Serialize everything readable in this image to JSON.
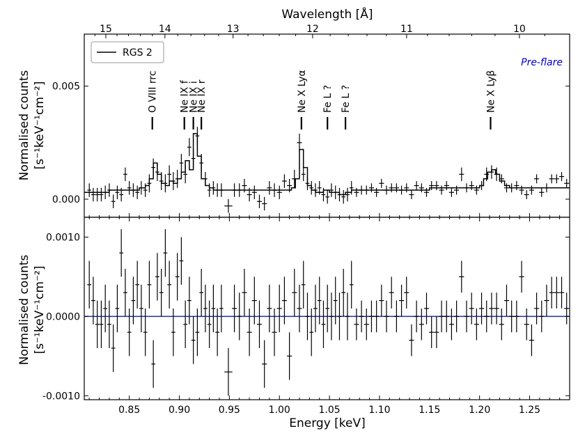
{
  "chart_data": [
    {
      "type": "line",
      "panel": "top",
      "xlabel": "Energy [keV]",
      "top_axis_label": "Wavelength [Å]",
      "ylabel_line1": "Normalised counts",
      "ylabel_line2": "[s⁻¹keV⁻¹cm⁻²]",
      "xlim": [
        0.805,
        1.29
      ],
      "ylim": [
        -0.0008,
        0.0073
      ],
      "yticks": [
        0.0,
        0.005
      ],
      "ytick_labels": [
        "0.000",
        "0.005"
      ],
      "wavelength_ticks": [
        15,
        14,
        13,
        12,
        11,
        10
      ],
      "wavelength_tick_labels": [
        "15",
        "14",
        "13",
        "12",
        "11",
        "10"
      ],
      "legend": "RGS 2",
      "corner_note": "Pre-flare",
      "annotations": [
        {
          "text": "O VIII rrc",
          "x": 0.873
        },
        {
          "text": "Ne IX f",
          "x": 0.905
        },
        {
          "text": "Ne IX i",
          "x": 0.914
        },
        {
          "text": "Ne IX r",
          "x": 0.922
        },
        {
          "text": "Ne X Lyα",
          "x": 1.022
        },
        {
          "text": "Fe L ?",
          "x": 1.048
        },
        {
          "text": "Fe L ?",
          "x": 1.066
        },
        {
          "text": "Ne X Lyβ",
          "x": 1.211
        }
      ],
      "series": [
        {
          "name": "data",
          "x": [
            0.81,
            0.814,
            0.818,
            0.822,
            0.826,
            0.83,
            0.834,
            0.838,
            0.842,
            0.846,
            0.85,
            0.854,
            0.858,
            0.862,
            0.866,
            0.87,
            0.874,
            0.878,
            0.882,
            0.886,
            0.89,
            0.894,
            0.898,
            0.902,
            0.906,
            0.91,
            0.914,
            0.918,
            0.922,
            0.926,
            0.93,
            0.934,
            0.938,
            0.942,
            0.949,
            0.955,
            0.96,
            0.965,
            0.97,
            0.975,
            0.98,
            0.985,
            0.99,
            0.995,
            1.0,
            1.005,
            1.01,
            1.015,
            1.02,
            1.024,
            1.028,
            1.032,
            1.036,
            1.04,
            1.044,
            1.048,
            1.052,
            1.056,
            1.06,
            1.064,
            1.068,
            1.072,
            1.077,
            1.082,
            1.087,
            1.092,
            1.097,
            1.102,
            1.107,
            1.112,
            1.117,
            1.122,
            1.127,
            1.132,
            1.137,
            1.142,
            1.147,
            1.152,
            1.157,
            1.162,
            1.167,
            1.172,
            1.177,
            1.182,
            1.187,
            1.192,
            1.197,
            1.202,
            1.207,
            1.212,
            1.217,
            1.222,
            1.227,
            1.232,
            1.237,
            1.242,
            1.247,
            1.252,
            1.257,
            1.262,
            1.267,
            1.272,
            1.277,
            1.282,
            1.287
          ],
          "y": [
            0.0004,
            0.0002,
            0.0002,
            0.0002,
            0.0003,
            0.0004,
            -0.0001,
            0.0003,
            0.0002,
            0.0011,
            0.0005,
            0.0004,
            0.0003,
            0.0005,
            0.0004,
            0.0007,
            0.0014,
            0.0012,
            0.0008,
            0.0007,
            0.0011,
            0.0008,
            0.0009,
            0.0016,
            0.0011,
            0.0023,
            0.0018,
            0.0028,
            0.0016,
            0.0009,
            0.0004,
            0.0005,
            0.0004,
            0.0004,
            -0.0003,
            0.0004,
            0.0004,
            0.0006,
            0.0002,
            0.0003,
            -0.0001,
            -0.0002,
            0.0005,
            0.0004,
            0.0003,
            0.0008,
            0.0006,
            0.0009,
            0.0025,
            0.0011,
            0.0007,
            0.0005,
            0.0004,
            0.0005,
            0.0002,
            0.0001,
            0.0004,
            0.0003,
            0.0002,
            0.0001,
            0.0002,
            0.0005,
            0.0003,
            0.0004,
            0.0004,
            0.0005,
            0.0003,
            0.0007,
            0.0004,
            0.0005,
            0.0005,
            0.0004,
            0.0005,
            0.0002,
            0.0006,
            0.0005,
            0.0003,
            0.0006,
            0.0006,
            0.0004,
            0.0006,
            0.0003,
            0.0004,
            0.0011,
            0.0005,
            0.0006,
            0.0004,
            0.0006,
            0.0011,
            0.0012,
            0.0011,
            0.0009,
            0.0005,
            0.0005,
            0.0006,
            0.0004,
            0.0002,
            0.0004,
            0.0009,
            0.0003,
            0.0005,
            0.0009,
            0.0009,
            0.001,
            0.0007
          ],
          "xerr": [
            0.002,
            0.002,
            0.002,
            0.002,
            0.002,
            0.002,
            0.002,
            0.002,
            0.002,
            0.002,
            0.002,
            0.002,
            0.002,
            0.002,
            0.002,
            0.002,
            0.002,
            0.002,
            0.002,
            0.002,
            0.002,
            0.002,
            0.002,
            0.002,
            0.002,
            0.002,
            0.002,
            0.002,
            0.002,
            0.002,
            0.002,
            0.002,
            0.002,
            0.002,
            0.004,
            0.0025,
            0.0025,
            0.0025,
            0.0025,
            0.0025,
            0.0025,
            0.0025,
            0.0025,
            0.0025,
            0.0025,
            0.0025,
            0.0025,
            0.0025,
            0.0025,
            0.002,
            0.002,
            0.002,
            0.002,
            0.002,
            0.002,
            0.002,
            0.002,
            0.002,
            0.002,
            0.002,
            0.002,
            0.002,
            0.0025,
            0.0025,
            0.0025,
            0.0025,
            0.0025,
            0.0025,
            0.0025,
            0.0025,
            0.0025,
            0.0025,
            0.0025,
            0.0025,
            0.0025,
            0.0025,
            0.0025,
            0.0025,
            0.0025,
            0.0025,
            0.0025,
            0.0025,
            0.0025,
            0.0025,
            0.0025,
            0.0025,
            0.0025,
            0.0025,
            0.0025,
            0.0025,
            0.0025,
            0.0025,
            0.0025,
            0.0025,
            0.0025,
            0.0025,
            0.0025,
            0.0025,
            0.0025,
            0.0025,
            0.0025,
            0.0025,
            0.0025,
            0.0025,
            0.0025
          ],
          "yerr": [
            0.0003,
            0.0003,
            0.0003,
            0.0003,
            0.0003,
            0.0003,
            0.0003,
            0.0003,
            0.0003,
            0.0003,
            0.0003,
            0.0003,
            0.0003,
            0.0003,
            0.0003,
            0.0004,
            0.0004,
            0.0004,
            0.0004,
            0.0004,
            0.0004,
            0.0004,
            0.0004,
            0.0004,
            0.0004,
            0.0004,
            0.0004,
            0.0004,
            0.0004,
            0.0003,
            0.0003,
            0.0003,
            0.0003,
            0.0003,
            0.0003,
            0.0003,
            0.0003,
            0.0003,
            0.0003,
            0.0003,
            0.0003,
            0.0003,
            0.0003,
            0.0003,
            0.0003,
            0.0003,
            0.0003,
            0.0004,
            0.0004,
            0.0003,
            0.0003,
            0.0003,
            0.0003,
            0.0003,
            0.0003,
            0.0003,
            0.0003,
            0.0003,
            0.0003,
            0.0003,
            0.0003,
            0.0003,
            0.0002,
            0.0002,
            0.0002,
            0.0002,
            0.0002,
            0.0002,
            0.0002,
            0.0002,
            0.0002,
            0.0002,
            0.0002,
            0.0002,
            0.0002,
            0.0002,
            0.0002,
            0.0002,
            0.0002,
            0.0002,
            0.0002,
            0.0002,
            0.0002,
            0.0003,
            0.0002,
            0.0002,
            0.0002,
            0.0002,
            0.0003,
            0.0003,
            0.0003,
            0.0002,
            0.0002,
            0.0002,
            0.0002,
            0.0002,
            0.0002,
            0.0002,
            0.0002,
            0.0002,
            0.0002,
            0.0002,
            0.0002,
            0.0002,
            0.0002
          ]
        },
        {
          "name": "model",
          "x": [
            0.805,
            0.83,
            0.845,
            0.86,
            0.866,
            0.87,
            0.874,
            0.878,
            0.882,
            0.886,
            0.89,
            0.894,
            0.898,
            0.902,
            0.906,
            0.91,
            0.914,
            0.918,
            0.922,
            0.926,
            0.93,
            0.934,
            0.95,
            1.0,
            1.012,
            1.016,
            1.02,
            1.024,
            1.028,
            1.032,
            1.036,
            1.044,
            1.05,
            1.06,
            1.066,
            1.072,
            1.1,
            1.15,
            1.2,
            1.204,
            1.208,
            1.212,
            1.216,
            1.22,
            1.225,
            1.23,
            1.26,
            1.29
          ],
          "y": [
            0.0003,
            0.0004,
            0.0004,
            0.0005,
            0.0006,
            0.0009,
            0.0016,
            0.0011,
            0.0007,
            0.0006,
            0.0008,
            0.0007,
            0.0009,
            0.0012,
            0.0017,
            0.0013,
            0.0029,
            0.0019,
            0.0009,
            0.0006,
            0.0005,
            0.0004,
            0.0004,
            0.0004,
            0.0005,
            0.0009,
            0.0022,
            0.0014,
            0.0006,
            0.0004,
            0.0003,
            0.0004,
            0.0003,
            0.0002,
            0.0003,
            0.0004,
            0.0004,
            0.0005,
            0.0006,
            0.0009,
            0.0012,
            0.0013,
            0.0011,
            0.0008,
            0.0006,
            0.0005,
            0.0005,
            0.0005
          ]
        }
      ]
    },
    {
      "type": "scatter",
      "panel": "bottom",
      "xlabel": "Energy [keV]",
      "ylabel_line1": "Normalised counts",
      "ylabel_line2": "[s⁻¹keV⁻¹cm⁻²]",
      "xlim": [
        0.805,
        1.29
      ],
      "ylim": [
        -0.00105,
        0.00125
      ],
      "yticks": [
        -0.001,
        0.0,
        0.001
      ],
      "ytick_labels": [
        "-0.0010",
        "0.0000",
        "0.0010"
      ],
      "xticks": [
        0.85,
        0.9,
        0.95,
        1.0,
        1.05,
        1.1,
        1.15,
        1.2,
        1.25
      ],
      "xtick_labels": [
        "0.85",
        "0.90",
        "0.95",
        "1.00",
        "1.05",
        "1.10",
        "1.15",
        "1.20",
        "1.25"
      ],
      "reference_line": 0.0,
      "series": [
        {
          "name": "residuals",
          "x": [
            0.81,
            0.814,
            0.818,
            0.822,
            0.826,
            0.83,
            0.834,
            0.838,
            0.842,
            0.846,
            0.85,
            0.854,
            0.858,
            0.862,
            0.866,
            0.87,
            0.874,
            0.878,
            0.882,
            0.886,
            0.89,
            0.894,
            0.898,
            0.902,
            0.906,
            0.91,
            0.914,
            0.918,
            0.922,
            0.926,
            0.93,
            0.934,
            0.938,
            0.942,
            0.949,
            0.955,
            0.96,
            0.965,
            0.97,
            0.975,
            0.98,
            0.985,
            0.99,
            0.995,
            1.0,
            1.005,
            1.01,
            1.015,
            1.02,
            1.024,
            1.028,
            1.032,
            1.036,
            1.04,
            1.044,
            1.048,
            1.052,
            1.056,
            1.06,
            1.064,
            1.068,
            1.072,
            1.077,
            1.082,
            1.087,
            1.092,
            1.097,
            1.102,
            1.107,
            1.112,
            1.117,
            1.122,
            1.127,
            1.132,
            1.137,
            1.142,
            1.147,
            1.152,
            1.157,
            1.162,
            1.167,
            1.172,
            1.177,
            1.182,
            1.187,
            1.192,
            1.197,
            1.202,
            1.207,
            1.212,
            1.217,
            1.222,
            1.227,
            1.232,
            1.237,
            1.242,
            1.247,
            1.252,
            1.257,
            1.262,
            1.267,
            1.272,
            1.277,
            1.282,
            1.287
          ],
          "y": [
            0.0004,
            0.0002,
            -0.0001,
            -0.0001,
            0.0001,
            -0.0001,
            -0.0004,
            0.0001,
            0.0008,
            0.0003,
            -0.0002,
            0.0002,
            0.0004,
            0.0001,
            -0.0002,
            0.0004,
            -0.0006,
            0.0005,
            0.0003,
            0.0008,
            0.0004,
            -0.0002,
            0.0005,
            0.0007,
            -0.0001,
            0.0002,
            -0.0003,
            -0.0002,
            0.0003,
            0.0001,
            -0.0001,
            0.0001,
            -0.0002,
            0.0001,
            -0.0007,
            0.0001,
            0.0,
            0.0003,
            -0.0002,
            0.0002,
            -0.0001,
            -0.0006,
            0.0001,
            -0.0002,
            0.0001,
            0.0002,
            -0.0005,
            0.0003,
            0.0001,
            0.0004,
            0.0,
            -0.0002,
            0.0001,
            0.0002,
            -0.0001,
            0.0001,
            0.0,
            0.0002,
            0.0,
            0.0003,
            0.0,
            0.0004,
            -0.0001,
            0.0,
            -0.0001,
            0.0,
            0.0,
            0.0002,
            0.0,
            0.0003,
            0.0,
            0.0002,
            0.0003,
            -0.0003,
            0.0,
            -0.0001,
            0.0001,
            -0.0002,
            -0.0002,
            0.0,
            0.0,
            -0.0001,
            0.0,
            0.0005,
            0.0,
            0.0001,
            -0.0001,
            0.0001,
            0.0,
            0.0001,
            0.0001,
            -0.0001,
            0.0002,
            0.0,
            0.0,
            0.0005,
            -0.0001,
            -0.0003,
            0.0001,
            0.0,
            0.0002,
            0.0003,
            0.0003,
            0.0003,
            0.0001
          ],
          "yerr": [
            0.0003,
            0.0003,
            0.0003,
            0.0003,
            0.0003,
            0.0003,
            0.0003,
            0.0003,
            0.0003,
            0.0003,
            0.0003,
            0.0003,
            0.0003,
            0.0003,
            0.0003,
            0.0003,
            0.0003,
            0.0003,
            0.0003,
            0.0003,
            0.0003,
            0.0003,
            0.0003,
            0.0003,
            0.0003,
            0.0003,
            0.0003,
            0.0003,
            0.0003,
            0.0003,
            0.0003,
            0.0003,
            0.0003,
            0.0003,
            0.0003,
            0.0003,
            0.0003,
            0.0003,
            0.0003,
            0.0003,
            0.0003,
            0.0003,
            0.0003,
            0.0003,
            0.0003,
            0.0003,
            0.0003,
            0.0003,
            0.0003,
            0.0003,
            0.0003,
            0.0003,
            0.0003,
            0.0003,
            0.0003,
            0.0003,
            0.0003,
            0.0003,
            0.0003,
            0.0003,
            0.0003,
            0.0003,
            0.0002,
            0.0002,
            0.0002,
            0.0002,
            0.0002,
            0.0002,
            0.0002,
            0.0002,
            0.0002,
            0.0002,
            0.0002,
            0.0002,
            0.0002,
            0.0002,
            0.0002,
            0.0002,
            0.0002,
            0.0002,
            0.0002,
            0.0002,
            0.0002,
            0.0002,
            0.0002,
            0.0002,
            0.0002,
            0.0002,
            0.0002,
            0.0002,
            0.0002,
            0.0002,
            0.0002,
            0.0002,
            0.0002,
            0.0002,
            0.0002,
            0.0002,
            0.0002,
            0.0002,
            0.0002,
            0.0002,
            0.0002,
            0.0002,
            0.0002
          ]
        }
      ]
    }
  ]
}
